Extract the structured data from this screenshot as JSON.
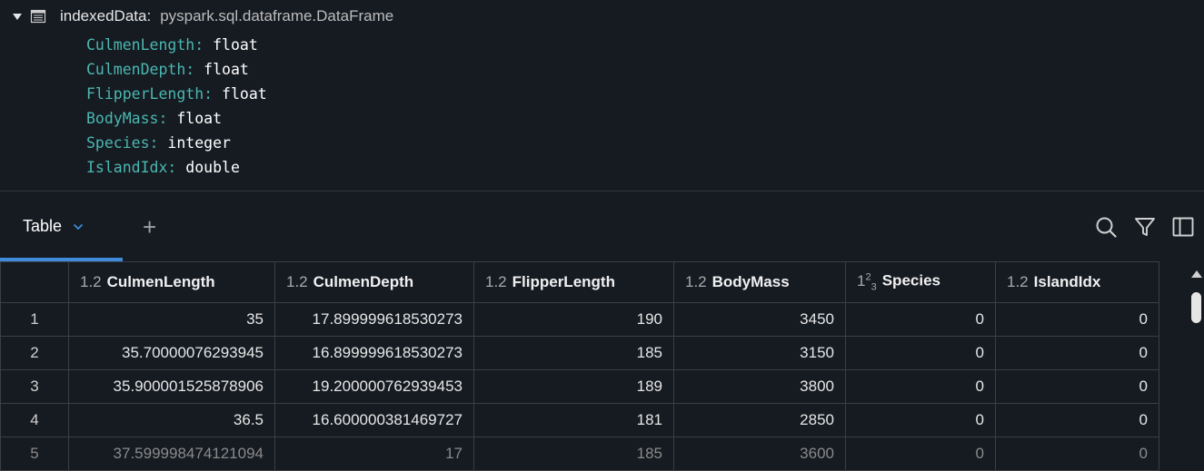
{
  "schema": {
    "var_name": "indexedData:",
    "type_name": "pyspark.sql.dataframe.DataFrame",
    "fields": [
      {
        "name": "CulmenLength:",
        "type": "float"
      },
      {
        "name": "CulmenDepth:",
        "type": "float"
      },
      {
        "name": "FlipperLength:",
        "type": "float"
      },
      {
        "name": "BodyMass:",
        "type": "float"
      },
      {
        "name": "Species:",
        "type": "integer"
      },
      {
        "name": "IslandIdx:",
        "type": "double"
      }
    ]
  },
  "tabs": {
    "active_label": "Table",
    "add_label": "+"
  },
  "table": {
    "columns": [
      {
        "type": "1.2",
        "name": "CulmenLength"
      },
      {
        "type": "1.2",
        "name": "CulmenDepth"
      },
      {
        "type": "1.2",
        "name": "FlipperLength"
      },
      {
        "type": "1.2",
        "name": "BodyMass"
      },
      {
        "type": "123",
        "name": "Species"
      },
      {
        "type": "1.2",
        "name": "IslandIdx"
      }
    ],
    "rows": [
      {
        "idx": "1",
        "cells": [
          "35",
          "17.899999618530273",
          "190",
          "3450",
          "0",
          "0"
        ]
      },
      {
        "idx": "2",
        "cells": [
          "35.70000076293945",
          "16.899999618530273",
          "185",
          "3150",
          "0",
          "0"
        ]
      },
      {
        "idx": "3",
        "cells": [
          "35.900001525878906",
          "19.200000762939453",
          "189",
          "3800",
          "0",
          "0"
        ]
      },
      {
        "idx": "4",
        "cells": [
          "36.5",
          "16.600000381469727",
          "181",
          "2850",
          "0",
          "0"
        ]
      },
      {
        "idx": "5",
        "cells": [
          "37.599998474121094",
          "17",
          "185",
          "3600",
          "0",
          "0"
        ]
      }
    ]
  },
  "icons": {
    "collapse": "caret-down-icon",
    "dataframe": "table-icon",
    "search": "search-icon",
    "filter": "filter-icon",
    "panel": "sidebar-panel-icon"
  },
  "colors": {
    "background": "#161b22",
    "field_name": "#4ab7b0",
    "accent": "#3f8ad9"
  }
}
